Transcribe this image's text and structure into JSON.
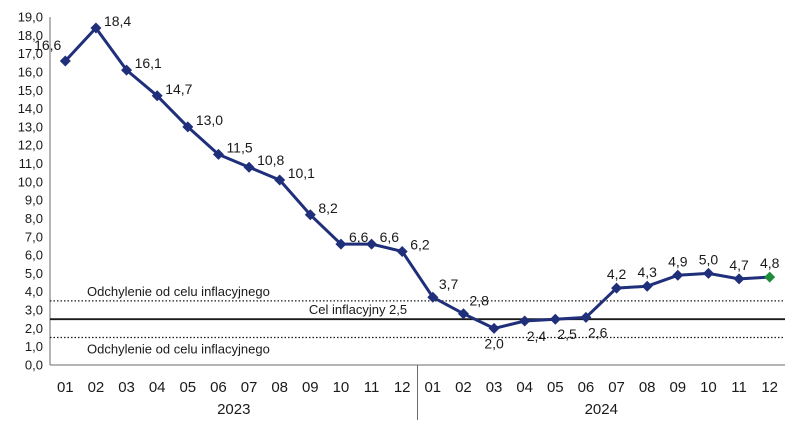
{
  "chart_data": {
    "type": "line",
    "y_ticks": [
      "0,0",
      "1,0",
      "2,0",
      "3,0",
      "4,0",
      "5,0",
      "6,0",
      "7,0",
      "8,0",
      "9,0",
      "10,0",
      "11,0",
      "12,0",
      "13,0",
      "14,0",
      "15,0",
      "16,0",
      "17,0",
      "18,0",
      "19,0"
    ],
    "ylim": [
      0,
      19
    ],
    "categories": [
      "01",
      "02",
      "03",
      "04",
      "05",
      "06",
      "07",
      "08",
      "09",
      "10",
      "11",
      "12",
      "01",
      "02",
      "03",
      "04",
      "05",
      "06",
      "07",
      "08",
      "09",
      "10",
      "11",
      "12"
    ],
    "years": [
      {
        "label": "2023",
        "start": 0,
        "end": 11
      },
      {
        "label": "2024",
        "start": 12,
        "end": 23
      }
    ],
    "series": [
      {
        "values": [
          16.6,
          18.4,
          16.1,
          14.7,
          13.0,
          11.5,
          10.8,
          10.1,
          8.2,
          6.6,
          6.6,
          6.2,
          3.7,
          2.8,
          2.0,
          2.4,
          2.5,
          2.6,
          4.2,
          4.3,
          4.9,
          5.0,
          4.7,
          4.8
        ],
        "labels": [
          "16,6",
          "18,4",
          "16,1",
          "14,7",
          "13,0",
          "11,5",
          "10,8",
          "10,1",
          "8,2",
          "6,6",
          "6,6",
          "6,2",
          "3,7",
          "2,8",
          "2,0",
          "2,4",
          "2,5",
          "2,6",
          "4,2",
          "4,3",
          "4,9",
          "5,0",
          "4,7",
          "4,8"
        ],
        "color": "#1f2f7a",
        "last_point_color": "#1e8c3a"
      }
    ],
    "reference_lines": [
      {
        "value": 3.5,
        "style": "dotted",
        "label": "Odchylenie od celu inflacyjnego"
      },
      {
        "value": 2.5,
        "style": "solid",
        "label": "Cel inflacyjny 2,5"
      },
      {
        "value": 1.5,
        "style": "dotted",
        "label": "Odchylenie od celu inflacyjnego"
      }
    ]
  }
}
